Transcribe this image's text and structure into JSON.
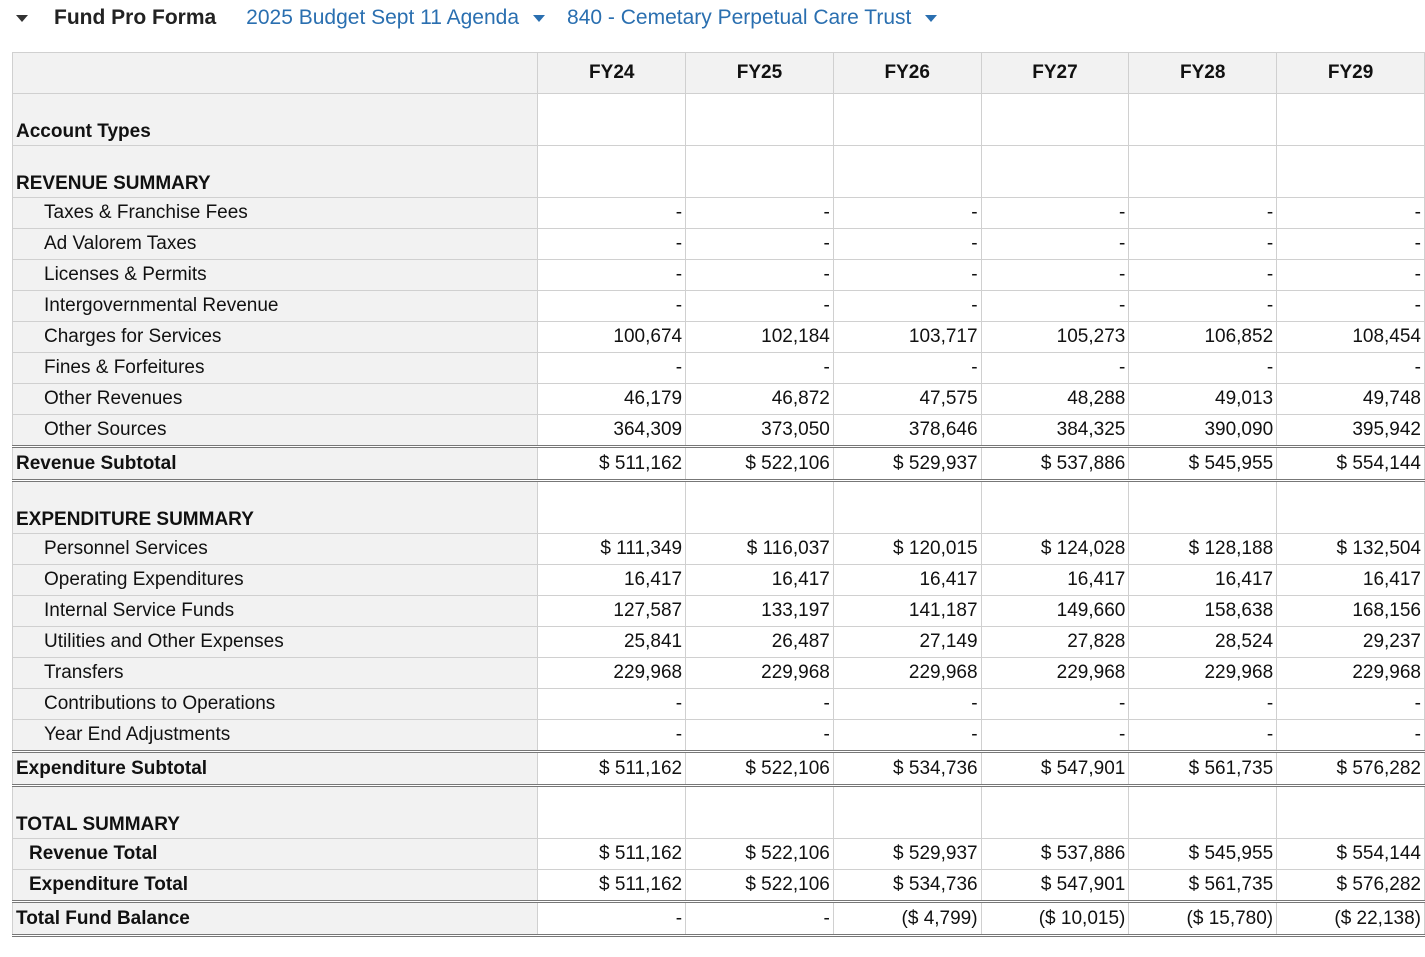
{
  "header": {
    "title": "Fund Pro Forma",
    "budget": "2025 Budget Sept 11 Agenda",
    "fund": "840 - Cemetary Perpetual Care Trust"
  },
  "columns": [
    "FY24",
    "FY25",
    "FY26",
    "FY27",
    "FY28",
    "FY29"
  ],
  "rows": [
    {
      "type": "sec",
      "label": "Account Types",
      "values": [
        "",
        "",
        "",
        "",
        "",
        ""
      ]
    },
    {
      "type": "sec",
      "label": "REVENUE SUMMARY",
      "values": [
        "",
        "",
        "",
        "",
        "",
        ""
      ]
    },
    {
      "type": "item",
      "label": "Taxes & Franchise Fees",
      "values": [
        "-",
        "-",
        "-",
        "-",
        "-",
        "-"
      ]
    },
    {
      "type": "item",
      "label": "Ad Valorem Taxes",
      "values": [
        "-",
        "-",
        "-",
        "-",
        "-",
        "-"
      ]
    },
    {
      "type": "item",
      "label": "Licenses & Permits",
      "values": [
        "-",
        "-",
        "-",
        "-",
        "-",
        "-"
      ]
    },
    {
      "type": "item",
      "label": "Intergovernmental Revenue",
      "values": [
        "-",
        "-",
        "-",
        "-",
        "-",
        "-"
      ]
    },
    {
      "type": "item",
      "label": "Charges for Services",
      "values": [
        "100,674",
        "102,184",
        "103,717",
        "105,273",
        "106,852",
        "108,454"
      ]
    },
    {
      "type": "item",
      "label": "Fines & Forfeitures",
      "values": [
        "-",
        "-",
        "-",
        "-",
        "-",
        "-"
      ]
    },
    {
      "type": "item",
      "label": "Other Revenues",
      "values": [
        "46,179",
        "46,872",
        "47,575",
        "48,288",
        "49,013",
        "49,748"
      ]
    },
    {
      "type": "item",
      "label": "Other Sources",
      "values": [
        "364,309",
        "373,050",
        "378,646",
        "384,325",
        "390,090",
        "395,942"
      ]
    },
    {
      "type": "sub end",
      "label": "Revenue Subtotal",
      "values": [
        "$ 511,162",
        "$ 522,106",
        "$ 529,937",
        "$ 537,886",
        "$ 545,955",
        "$ 554,144"
      ]
    },
    {
      "type": "sec",
      "label": "EXPENDITURE SUMMARY",
      "values": [
        "",
        "",
        "",
        "",
        "",
        ""
      ]
    },
    {
      "type": "item",
      "label": "Personnel Services",
      "values": [
        "$ 111,349",
        "$ 116,037",
        "$ 120,015",
        "$ 124,028",
        "$ 128,188",
        "$ 132,504"
      ]
    },
    {
      "type": "item",
      "label": "Operating Expenditures",
      "values": [
        "16,417",
        "16,417",
        "16,417",
        "16,417",
        "16,417",
        "16,417"
      ]
    },
    {
      "type": "item",
      "label": "Internal Service Funds",
      "values": [
        "127,587",
        "133,197",
        "141,187",
        "149,660",
        "158,638",
        "168,156"
      ]
    },
    {
      "type": "item",
      "label": "Utilities and Other Expenses",
      "values": [
        "25,841",
        "26,487",
        "27,149",
        "27,828",
        "28,524",
        "29,237"
      ]
    },
    {
      "type": "item",
      "label": "Transfers",
      "values": [
        "229,968",
        "229,968",
        "229,968",
        "229,968",
        "229,968",
        "229,968"
      ]
    },
    {
      "type": "item",
      "label": "Contributions to Operations",
      "values": [
        "-",
        "-",
        "-",
        "-",
        "-",
        "-"
      ]
    },
    {
      "type": "item",
      "label": "Year End Adjustments",
      "values": [
        "-",
        "-",
        "-",
        "-",
        "-",
        "-"
      ]
    },
    {
      "type": "sub end",
      "label": "Expenditure Subtotal",
      "values": [
        "$ 511,162",
        "$ 522,106",
        "$ 534,736",
        "$ 547,901",
        "$ 561,735",
        "$ 576,282"
      ]
    },
    {
      "type": "sec",
      "label": "TOTAL SUMMARY",
      "values": [
        "",
        "",
        "",
        "",
        "",
        ""
      ]
    },
    {
      "type": "tot",
      "label": "Revenue Total",
      "values": [
        "$ 511,162",
        "$ 522,106",
        "$ 529,937",
        "$ 537,886",
        "$ 545,955",
        "$ 554,144"
      ]
    },
    {
      "type": "tot",
      "label": "Expenditure Total",
      "values": [
        "$ 511,162",
        "$ 522,106",
        "$ 534,736",
        "$ 547,901",
        "$ 561,735",
        "$ 576,282"
      ]
    },
    {
      "type": "sub end",
      "label": "Total Fund Balance",
      "values": [
        "-",
        "-",
        "($ 4,799)",
        "($ 10,015)",
        "($ 15,780)",
        "($ 22,138)"
      ]
    }
  ]
}
